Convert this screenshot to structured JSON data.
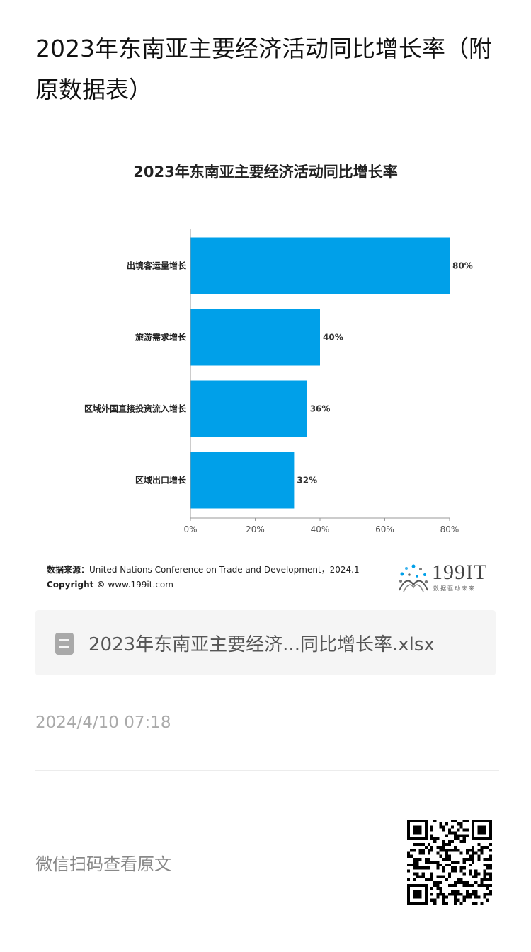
{
  "article": {
    "title": "2023年东南亚主要经济活动同比增长率（附原数据表）"
  },
  "chart_data": {
    "type": "bar",
    "orientation": "horizontal",
    "title": "2023年东南亚主要经济活动同比增长率",
    "categories": [
      "出境客运量增长",
      "旅游需求增长",
      "区域外国直接投资流入增长",
      "区域出口增长"
    ],
    "values": [
      80,
      40,
      36,
      32
    ],
    "value_labels": [
      "80%",
      "40%",
      "36%",
      "32%"
    ],
    "x_ticks": [
      "0%",
      "20%",
      "40%",
      "60%",
      "80%"
    ],
    "xlim": [
      0,
      80
    ],
    "grid": false,
    "bar_color": "#00a0e9"
  },
  "source": {
    "label": "数据来源：",
    "text": "United Nations Conference on Trade and Development，2024.1",
    "copyright_label": "Copyright ©",
    "copyright_url": "www.199it.com"
  },
  "logo": {
    "text": "199IT",
    "subtitle": "数据驱动未来"
  },
  "attachment": {
    "filename": "2023年东南亚主要经济...同比增长率.xlsx",
    "icon": "spreadsheet-file-icon"
  },
  "timestamp": "2024/4/10 07:18",
  "footer": {
    "scan_text": "微信扫码查看原文",
    "qr_icon": "qr-code-icon"
  }
}
